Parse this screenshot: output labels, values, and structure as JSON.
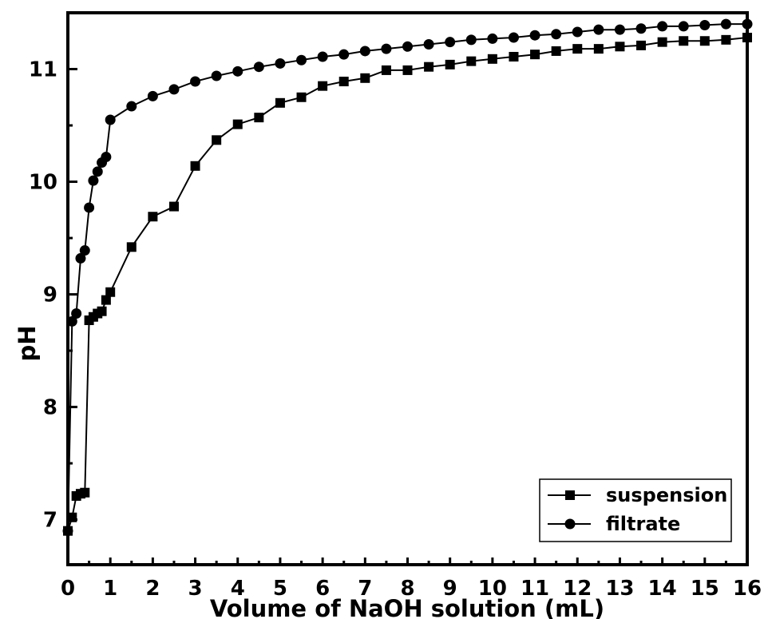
{
  "chart_data": {
    "type": "line",
    "title": "",
    "xlabel": "Volume of NaOH solution (mL)",
    "ylabel": "pH",
    "xlim": [
      0,
      16
    ],
    "ylim": [
      6.6,
      11.5
    ],
    "x_ticks": [
      0,
      1,
      2,
      3,
      4,
      5,
      6,
      7,
      8,
      9,
      10,
      11,
      12,
      13,
      14,
      15,
      16
    ],
    "y_ticks": [
      7,
      8,
      9,
      10,
      11
    ],
    "grid": false,
    "legend_position": "lower right",
    "series": [
      {
        "name": "suspension",
        "marker": "square",
        "color": "#000000",
        "x": [
          0,
          0.1,
          0.2,
          0.3,
          0.4,
          0.5,
          0.6,
          0.7,
          0.8,
          0.9,
          1.0,
          1.5,
          2.0,
          2.5,
          3.0,
          3.5,
          4.0,
          4.5,
          5.0,
          5.5,
          6.0,
          6.5,
          7.0,
          7.5,
          8.0,
          8.5,
          9.0,
          9.5,
          10.0,
          10.5,
          11.0,
          11.5,
          12.0,
          12.5,
          13.0,
          13.5,
          14.0,
          14.5,
          15.0,
          15.5,
          16.0
        ],
        "y": [
          6.9,
          7.02,
          7.21,
          7.23,
          7.24,
          8.77,
          8.8,
          8.83,
          8.85,
          8.95,
          9.02,
          9.42,
          9.69,
          9.78,
          10.14,
          10.37,
          10.51,
          10.57,
          10.7,
          10.75,
          10.85,
          10.89,
          10.92,
          10.99,
          10.99,
          11.02,
          11.04,
          11.07,
          11.09,
          11.11,
          11.13,
          11.16,
          11.18,
          11.18,
          11.2,
          11.21,
          11.24,
          11.25,
          11.25,
          11.26,
          11.28
        ]
      },
      {
        "name": "filtrate",
        "marker": "circle",
        "color": "#000000",
        "x": [
          0,
          0.1,
          0.2,
          0.3,
          0.4,
          0.5,
          0.6,
          0.7,
          0.8,
          0.9,
          1.0,
          1.5,
          2.0,
          2.5,
          3.0,
          3.5,
          4.0,
          4.5,
          5.0,
          5.5,
          6.0,
          6.5,
          7.0,
          7.5,
          8.0,
          8.5,
          9.0,
          9.5,
          10.0,
          10.5,
          11.0,
          11.5,
          12.0,
          12.5,
          13.0,
          13.5,
          14.0,
          14.5,
          15.0,
          15.5,
          16.0
        ],
        "y": [
          6.9,
          8.76,
          8.83,
          9.32,
          9.39,
          9.77,
          10.01,
          10.09,
          10.17,
          10.22,
          10.55,
          10.67,
          10.76,
          10.82,
          10.89,
          10.94,
          10.98,
          11.02,
          11.05,
          11.08,
          11.11,
          11.13,
          11.16,
          11.18,
          11.2,
          11.22,
          11.24,
          11.26,
          11.27,
          11.28,
          11.3,
          11.31,
          11.33,
          11.35,
          11.35,
          11.36,
          11.38,
          11.38,
          11.39,
          11.4,
          11.4
        ]
      }
    ]
  },
  "legend": {
    "items": [
      {
        "label": "suspension",
        "marker": "square"
      },
      {
        "label": "filtrate",
        "marker": "circle"
      }
    ]
  },
  "axes": {
    "x_title": "Volume of NaOH solution (mL)",
    "y_title": "pH"
  }
}
